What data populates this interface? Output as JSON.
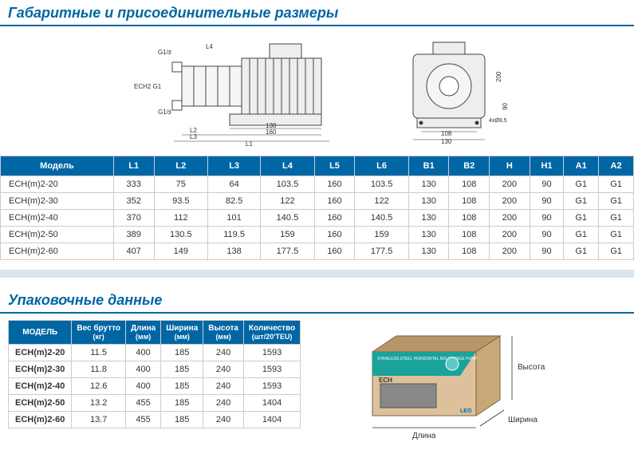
{
  "section1_title": "Габаритные и присоединительные размеры",
  "section2_title": "Упаковочные данные",
  "diagram_labels": {
    "g1_top": "G1/♯",
    "g1_bot": "G1/♯",
    "ech2g1": "ECH2 G1",
    "l4": "L4",
    "l2": "L2",
    "l3": "L3",
    "l1": "L1",
    "d138": "138",
    "d160": "160",
    "d200": "200",
    "d90": "90",
    "d108": "108",
    "d130": "130",
    "holes": "4xØ8,5"
  },
  "dim_headers": [
    "Модель",
    "L1",
    "L2",
    "L3",
    "L4",
    "L5",
    "L6",
    "B1",
    "B2",
    "H",
    "H1",
    "A1",
    "A2"
  ],
  "dim_rows": [
    [
      "ECH(m)2-20",
      "333",
      "75",
      "64",
      "103.5",
      "160",
      "103.5",
      "130",
      "108",
      "200",
      "90",
      "G1",
      "G1"
    ],
    [
      "ECH(m)2-30",
      "352",
      "93.5",
      "82.5",
      "122",
      "160",
      "122",
      "130",
      "108",
      "200",
      "90",
      "G1",
      "G1"
    ],
    [
      "ECH(m)2-40",
      "370",
      "112",
      "101",
      "140.5",
      "160",
      "140.5",
      "130",
      "108",
      "200",
      "90",
      "G1",
      "G1"
    ],
    [
      "ECH(m)2-50",
      "389",
      "130.5",
      "119.5",
      "159",
      "160",
      "159",
      "130",
      "108",
      "200",
      "90",
      "G1",
      "G1"
    ],
    [
      "ECH(m)2-60",
      "407",
      "149",
      "138",
      "177.5",
      "160",
      "177.5",
      "130",
      "108",
      "200",
      "90",
      "G1",
      "G1"
    ]
  ],
  "pack_headers": [
    {
      "l1": "МОДЕЛЬ",
      "l2": ""
    },
    {
      "l1": "Вес брутто",
      "l2": "(кг)"
    },
    {
      "l1": "Длина",
      "l2": "(мм)"
    },
    {
      "l1": "Ширина",
      "l2": "(мм)"
    },
    {
      "l1": "Высота",
      "l2": "(мм)"
    },
    {
      "l1": "Количество",
      "l2": "(шт/20'TEU)"
    }
  ],
  "pack_rows": [
    [
      "ECH(m)2-20",
      "11.5",
      "400",
      "185",
      "240",
      "1593"
    ],
    [
      "ECH(m)2-30",
      "11.8",
      "400",
      "185",
      "240",
      "1593"
    ],
    [
      "ECH(m)2-40",
      "12.6",
      "400",
      "185",
      "240",
      "1593"
    ],
    [
      "ECH(m)2-50",
      "13.2",
      "455",
      "185",
      "240",
      "1404"
    ],
    [
      "ECH(m)2-60",
      "13.7",
      "455",
      "185",
      "240",
      "1404"
    ]
  ],
  "box": {
    "height_label": "Высота",
    "width_label": "Ширина",
    "length_label": "Длина",
    "ech": "ECH",
    "leo": "LEO",
    "top_text": "STAINLESS STEEL HORIZONTAL MULTISTAGE PUMP"
  },
  "colors": {
    "brand": "#0066a4",
    "border": "#cccccc",
    "box_side": "#c9a878",
    "box_front": "#dcc19c",
    "box_banner": "#008b8b"
  }
}
